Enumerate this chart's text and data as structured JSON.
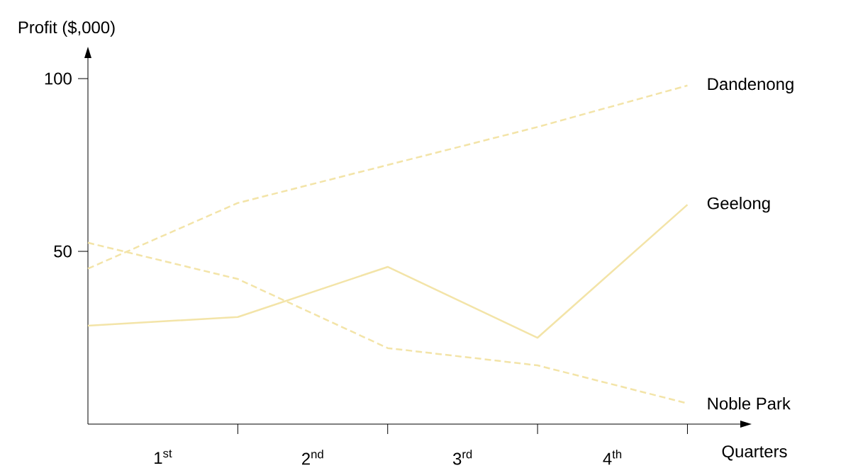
{
  "chart_data": {
    "type": "line",
    "xlabel": "Quarters",
    "ylabel": "Profit ($,000)",
    "x": [
      0,
      1,
      2,
      3,
      4
    ],
    "xlim": [
      0,
      4.4
    ],
    "ylim": [
      0,
      108
    ],
    "xticks": [
      {
        "value": 0.5,
        "label": "1$^{st}$"
      },
      {
        "value": 1.5,
        "label": "2$^{nd}$"
      },
      {
        "value": 2.5,
        "label": "3$^{rd}$"
      },
      {
        "value": 3.5,
        "label": "4$^{th}$"
      },
      {
        "value": 1,
        "label": null
      },
      {
        "value": 2,
        "label": null
      },
      {
        "value": 3,
        "label": null
      },
      {
        "value": 4,
        "label": null
      }
    ],
    "yticks": [
      50,
      100
    ],
    "legend": false,
    "grid": false,
    "marker": "none",
    "series": [
      {
        "name": "Dandenong",
        "color": "#f3e4a8",
        "line_style": "dashed",
        "values": [
          45,
          64,
          75,
          86,
          98
        ]
      },
      {
        "name": "Geelong",
        "color": "#f3e4a8",
        "line_style": "solid",
        "values": [
          28.5,
          31,
          45.5,
          25,
          63.5
        ]
      },
      {
        "name": "Noble Park",
        "color": "#f3e4a8",
        "line_style": "dashed",
        "values": [
          52.5,
          42,
          22,
          17,
          6
        ]
      }
    ]
  }
}
